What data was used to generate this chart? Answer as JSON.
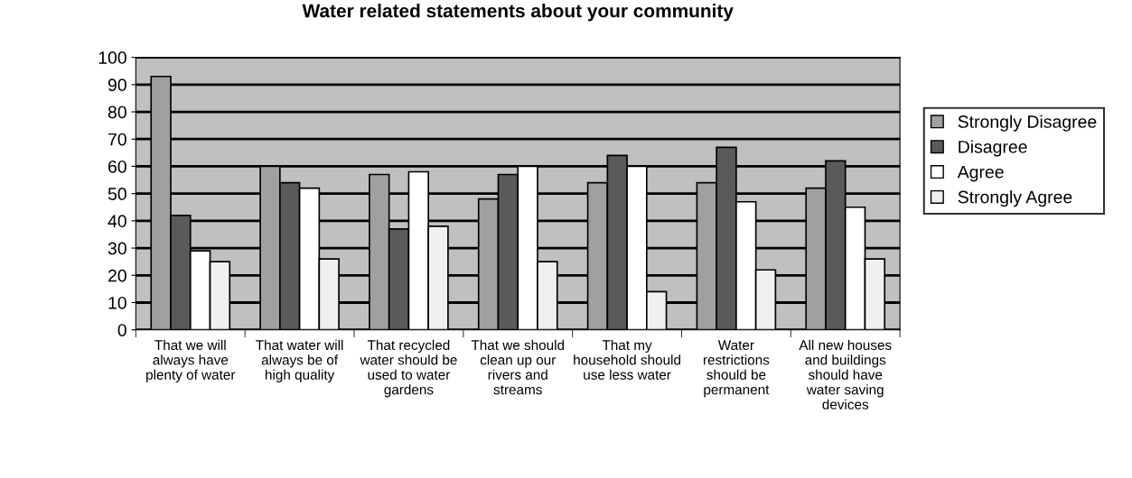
{
  "chart_data": {
    "type": "bar",
    "title": "Water related statements about your community",
    "categories": [
      "That we will\nalways have\nplenty of water",
      "That water will\nalways be of\nhigh quality",
      "That recycled\nwater should be\nused to water\ngardens",
      "That we should\nclean up our\nrivers and\nstreams",
      "That my\nhousehold should\nuse less water",
      "Water\nrestrictions\nshould be\npermanent",
      "All new houses\nand buildings\nshould have\nwater saving\ndevices"
    ],
    "series": [
      {
        "name": "Strongly Disagree",
        "color": "#a0a0a0",
        "values": [
          93,
          60,
          57,
          48,
          54,
          54,
          52
        ]
      },
      {
        "name": "Disagree",
        "color": "#5a5a5a",
        "values": [
          42,
          54,
          37,
          57,
          64,
          67,
          62
        ]
      },
      {
        "name": "Agree",
        "color": "#ffffff",
        "values": [
          29,
          52,
          58,
          60,
          60,
          47,
          45
        ]
      },
      {
        "name": "Strongly Agree",
        "color": "#f0f0f0",
        "values": [
          25,
          26,
          38,
          25,
          14,
          22,
          26
        ]
      }
    ],
    "ylim": [
      0,
      100
    ],
    "yticks": [
      0,
      10,
      20,
      30,
      40,
      50,
      60,
      70,
      80,
      90,
      100
    ],
    "grid": "y",
    "legend": "right"
  }
}
